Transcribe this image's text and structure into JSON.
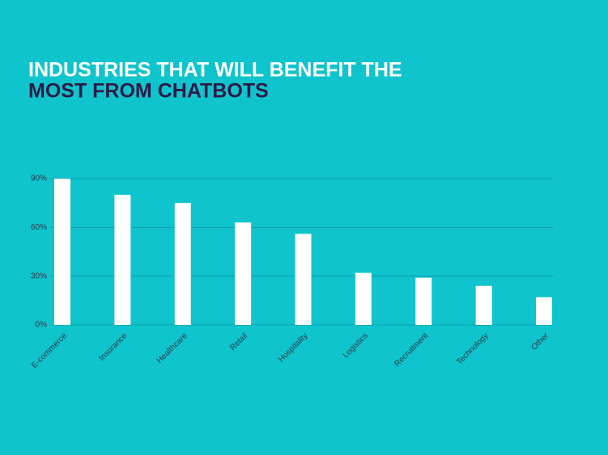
{
  "chart_data": {
    "type": "bar",
    "title": [
      "INDUSTRIES THAT WILL BENEFIT THE",
      "MOST FROM CHATBOTS"
    ],
    "categories": [
      "E-commerce",
      "Insurance",
      "Healthcare",
      "Retail",
      "Hospitality",
      "Logistics",
      "Recruitment",
      "Technology",
      "Other"
    ],
    "values": [
      90,
      80,
      75,
      63,
      56,
      32,
      29,
      24,
      17
    ],
    "color": "#ffffff",
    "ylim": [
      0,
      90
    ],
    "yticks": [
      {
        "value": 0,
        "label": "0%"
      },
      {
        "value": 30,
        "label": "30%"
      },
      {
        "value": 60,
        "label": "60%"
      },
      {
        "value": 90,
        "label": "90%"
      }
    ],
    "grid": true
  }
}
